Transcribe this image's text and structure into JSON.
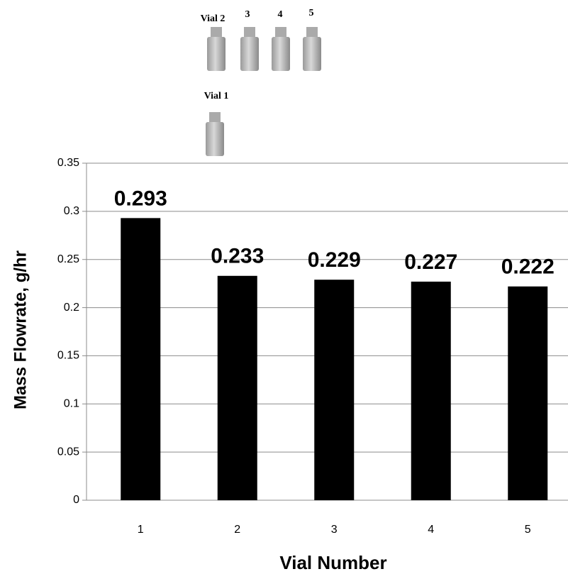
{
  "chart_data": {
    "type": "bar",
    "title": null,
    "annotations": [
      "Vial 2",
      "3",
      "4",
      "5",
      "Vial 1"
    ],
    "x_label": "Vial Number",
    "y_label": "Mass Flowrate, g/hr",
    "categories": [
      "1",
      "2",
      "3",
      "4",
      "5"
    ],
    "values": [
      0.293,
      0.233,
      0.229,
      0.227,
      0.222
    ],
    "color": "#000000",
    "ylim": [
      0,
      0.35
    ],
    "yticks": [
      0,
      0.05,
      0.1,
      0.15,
      0.2,
      0.25,
      0.3,
      0.35
    ],
    "grid": true
  }
}
